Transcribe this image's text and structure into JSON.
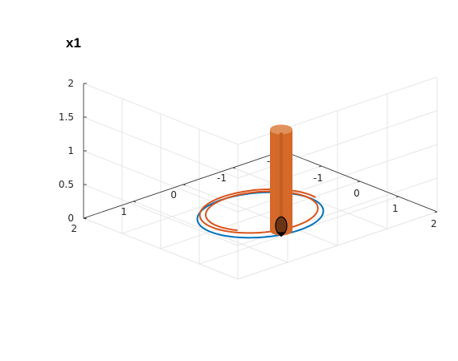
{
  "chart_data": {
    "type": "3d-line",
    "title": "x1",
    "view": "3d",
    "grid": true,
    "box": "open",
    "axes": {
      "x": {
        "range": [
          -2,
          2
        ],
        "ticks": [
          -2,
          -1,
          0,
          1,
          2
        ],
        "tick_labels": [
          "-2",
          "-1",
          "0",
          "1",
          "2"
        ]
      },
      "y": {
        "range": [
          -2,
          2
        ],
        "ticks": [
          -2,
          -1,
          0,
          1,
          2
        ],
        "tick_labels": [
          "-2",
          "-1",
          "0",
          "1",
          "2"
        ]
      },
      "z": {
        "range": [
          0,
          2
        ],
        "ticks": [
          0,
          0.5,
          1,
          1.5,
          2
        ],
        "tick_labels": [
          "0",
          "0.5",
          "1",
          "1.5",
          "2"
        ]
      }
    },
    "series": [
      {
        "kind": "circle",
        "color": "#0072BD",
        "center": [
          0,
          0,
          0
        ],
        "radius": 1.0,
        "z": 0
      },
      {
        "kind": "spiral",
        "color": "#D95319",
        "center": [
          0,
          0,
          0
        ],
        "radius_start": 0.85,
        "radius_end": 1.0,
        "turns": 1.6,
        "z": 0.05
      },
      {
        "kind": "cylinder",
        "color": "#D4692A",
        "base": [
          0.8,
          0.2,
          0
        ],
        "radius": 0.15,
        "height": 1.5
      },
      {
        "kind": "marker",
        "color": "#000000",
        "position": [
          0.8,
          0.2,
          0
        ]
      }
    ]
  }
}
